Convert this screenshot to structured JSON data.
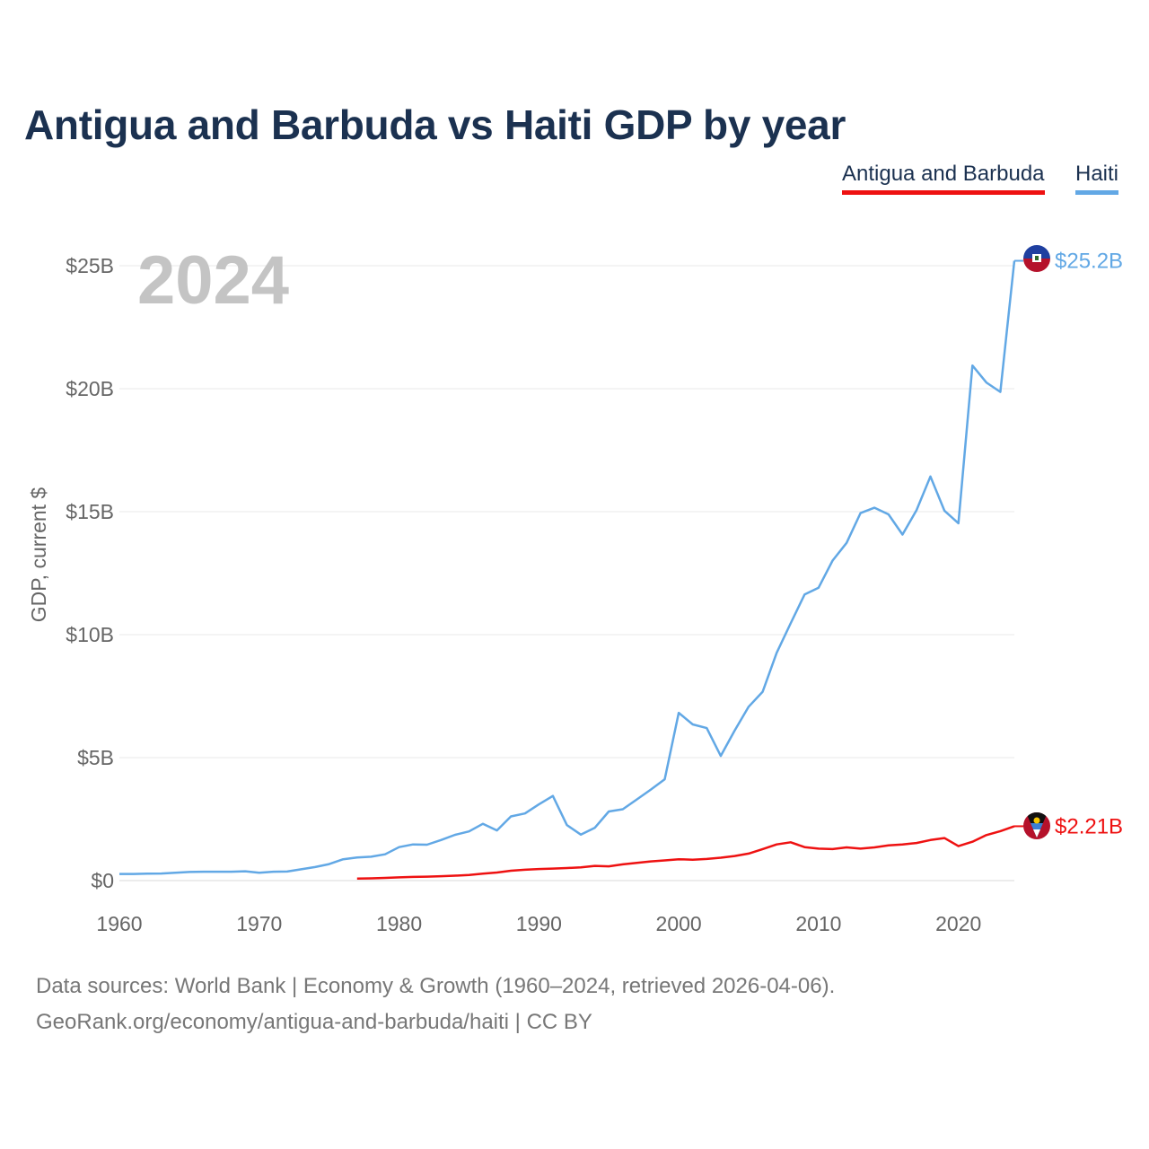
{
  "chart_data": {
    "type": "line",
    "title": "Antigua and Barbuda vs Haiti GDP by year",
    "year_overlay": "2024",
    "xlabel": "",
    "ylabel": "GDP, current $",
    "xlim": [
      1960,
      2024
    ],
    "ylim": [
      0,
      25
    ],
    "x_ticks": [
      1960,
      1970,
      1980,
      1990,
      2000,
      2010,
      2020
    ],
    "y_ticks": [
      {
        "value": 0,
        "label": "$0"
      },
      {
        "value": 5,
        "label": "$5B"
      },
      {
        "value": 10,
        "label": "$10B"
      },
      {
        "value": 15,
        "label": "$15B"
      },
      {
        "value": 20,
        "label": "$20B"
      },
      {
        "value": 25,
        "label": "$25B"
      }
    ],
    "grid": true,
    "legend_position": "top-right",
    "series": [
      {
        "name": "Antigua and Barbuda",
        "color": "#ee1111",
        "end_label": "$2.21B",
        "x": [
          1977,
          1978,
          1979,
          1980,
          1981,
          1982,
          1983,
          1984,
          1985,
          1986,
          1987,
          1988,
          1989,
          1990,
          1991,
          1992,
          1993,
          1994,
          1995,
          1996,
          1997,
          1998,
          1999,
          2000,
          2001,
          2002,
          2003,
          2004,
          2005,
          2006,
          2007,
          2008,
          2009,
          2010,
          2011,
          2012,
          2013,
          2014,
          2015,
          2016,
          2017,
          2018,
          2019,
          2020,
          2021,
          2022,
          2023,
          2024
        ],
        "values": [
          0.08,
          0.09,
          0.11,
          0.13,
          0.15,
          0.16,
          0.18,
          0.2,
          0.23,
          0.28,
          0.33,
          0.4,
          0.44,
          0.47,
          0.49,
          0.51,
          0.54,
          0.6,
          0.58,
          0.66,
          0.72,
          0.78,
          0.82,
          0.87,
          0.85,
          0.88,
          0.93,
          1.0,
          1.1,
          1.28,
          1.47,
          1.56,
          1.36,
          1.3,
          1.28,
          1.35,
          1.3,
          1.35,
          1.43,
          1.47,
          1.53,
          1.65,
          1.73,
          1.4,
          1.58,
          1.85,
          2.01,
          2.21
        ]
      },
      {
        "name": "Haiti",
        "color": "#62a8e5",
        "end_label": "$25.2B",
        "x": [
          1960,
          1961,
          1962,
          1963,
          1964,
          1965,
          1966,
          1967,
          1968,
          1969,
          1970,
          1971,
          1972,
          1973,
          1974,
          1975,
          1976,
          1977,
          1978,
          1979,
          1980,
          1981,
          1982,
          1983,
          1984,
          1985,
          1986,
          1987,
          1988,
          1989,
          1990,
          1991,
          1992,
          1993,
          1994,
          1995,
          1996,
          1997,
          1998,
          1999,
          2000,
          2001,
          2002,
          2003,
          2004,
          2005,
          2006,
          2007,
          2008,
          2009,
          2010,
          2011,
          2012,
          2013,
          2014,
          2015,
          2016,
          2017,
          2018,
          2019,
          2020,
          2021,
          2022,
          2023,
          2024
        ],
        "values": [
          0.27,
          0.27,
          0.28,
          0.29,
          0.32,
          0.35,
          0.36,
          0.36,
          0.36,
          0.38,
          0.32,
          0.36,
          0.37,
          0.46,
          0.55,
          0.67,
          0.87,
          0.94,
          0.97,
          1.07,
          1.36,
          1.47,
          1.46,
          1.65,
          1.86,
          2.0,
          2.31,
          2.04,
          2.61,
          2.73,
          3.1,
          3.44,
          2.26,
          1.87,
          2.15,
          2.81,
          2.9,
          3.3,
          3.7,
          4.12,
          6.82,
          6.35,
          6.2,
          5.07,
          6.1,
          7.07,
          7.68,
          9.26,
          10.46,
          11.63,
          11.91,
          13.01,
          13.73,
          14.94,
          15.16,
          14.89,
          14.07,
          15.06,
          16.43,
          15.04,
          14.53,
          20.94,
          20.25,
          19.87,
          25.2
        ]
      }
    ]
  },
  "legend": {
    "antigua_label": "Antigua and Barbuda",
    "haiti_label": "Haiti"
  },
  "footer": {
    "source_line1": "Data sources: World Bank | Economy & Growth (1960–2024, retrieved 2026-04-06).",
    "source_line2": "GeoRank.org/economy/antigua-and-barbuda/haiti | CC BY"
  },
  "icons": {
    "haiti_flag": "haiti-flag-icon",
    "antigua_flag": "antigua-flag-icon"
  }
}
